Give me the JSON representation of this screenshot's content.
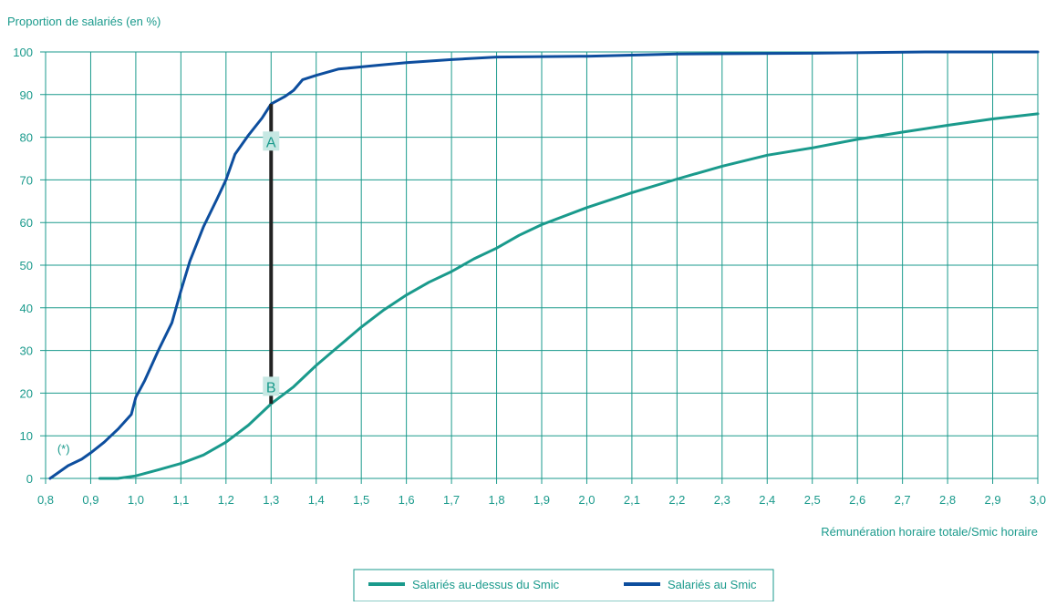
{
  "chart_data": {
    "type": "line",
    "ylabel": "Proportion de salariés (en %)",
    "xlabel": "Rémunération horaire totale/Smic horaire",
    "xlim": [
      0.8,
      3.0
    ],
    "ylim": [
      0,
      100
    ],
    "x_ticks": [
      "0,8",
      "0,9",
      "1,0",
      "1,1",
      "1,2",
      "1,3",
      "1,4",
      "1,5",
      "1,6",
      "1,7",
      "1,8",
      "1,9",
      "2,0",
      "2,1",
      "2,2",
      "2,3",
      "2,4",
      "2,5",
      "2,6",
      "2,7",
      "2,8",
      "2,9",
      "3,0"
    ],
    "y_ticks": [
      "0",
      "10",
      "20",
      "30",
      "40",
      "50",
      "60",
      "70",
      "80",
      "90",
      "100"
    ],
    "grid": true,
    "legend_position": "bottom-center",
    "series": [
      {
        "name": "Salariés au-dessus du Smic",
        "color": "#1a9a8c",
        "points": [
          [
            0.92,
            0
          ],
          [
            0.96,
            0
          ],
          [
            1.0,
            0.6
          ],
          [
            1.05,
            2.0
          ],
          [
            1.1,
            3.5
          ],
          [
            1.15,
            5.5
          ],
          [
            1.2,
            8.5
          ],
          [
            1.25,
            12.5
          ],
          [
            1.3,
            17.5
          ],
          [
            1.35,
            21.5
          ],
          [
            1.4,
            26.5
          ],
          [
            1.45,
            31
          ],
          [
            1.5,
            35.5
          ],
          [
            1.55,
            39.5
          ],
          [
            1.6,
            43
          ],
          [
            1.65,
            46
          ],
          [
            1.7,
            48.5
          ],
          [
            1.75,
            51.5
          ],
          [
            1.8,
            54
          ],
          [
            1.85,
            57
          ],
          [
            1.9,
            59.5
          ],
          [
            2.0,
            63.5
          ],
          [
            2.1,
            67
          ],
          [
            2.2,
            70.2
          ],
          [
            2.3,
            73.2
          ],
          [
            2.4,
            75.8
          ],
          [
            2.5,
            77.5
          ],
          [
            2.6,
            79.5
          ],
          [
            2.7,
            81.2
          ],
          [
            2.8,
            82.8
          ],
          [
            2.9,
            84.3
          ],
          [
            3.0,
            85.5
          ]
        ]
      },
      {
        "name": "Salariés au Smic",
        "color": "#0d4e9e",
        "points": [
          [
            0.81,
            0
          ],
          [
            0.83,
            1.5
          ],
          [
            0.85,
            3
          ],
          [
            0.88,
            4.5
          ],
          [
            0.9,
            6
          ],
          [
            0.93,
            8.5
          ],
          [
            0.96,
            11.5
          ],
          [
            0.99,
            15
          ],
          [
            1.0,
            19
          ],
          [
            1.02,
            23
          ],
          [
            1.05,
            30
          ],
          [
            1.08,
            36.5
          ],
          [
            1.1,
            44
          ],
          [
            1.12,
            51
          ],
          [
            1.15,
            59
          ],
          [
            1.18,
            65.5
          ],
          [
            1.2,
            70
          ],
          [
            1.22,
            76
          ],
          [
            1.25,
            80.5
          ],
          [
            1.28,
            84.5
          ],
          [
            1.3,
            87.8
          ],
          [
            1.33,
            89.5
          ],
          [
            1.35,
            91
          ],
          [
            1.37,
            93.5
          ],
          [
            1.4,
            94.5
          ],
          [
            1.45,
            96
          ],
          [
            1.5,
            96.5
          ],
          [
            1.55,
            97
          ],
          [
            1.6,
            97.5
          ],
          [
            1.7,
            98.2
          ],
          [
            1.8,
            98.8
          ],
          [
            2.0,
            99
          ],
          [
            2.2,
            99.5
          ],
          [
            2.5,
            99.7
          ],
          [
            2.75,
            100
          ],
          [
            3.0,
            100
          ]
        ]
      }
    ],
    "annotations": {
      "star_note": "(*)",
      "star_point": [
        0.86,
        7
      ],
      "vertical_segment": {
        "x": 1.3,
        "y_from": 17.5,
        "y_to": 87.8
      },
      "label_a": "A",
      "label_a_point": [
        1.3,
        79
      ],
      "label_b": "B",
      "label_b_point": [
        1.3,
        21.5
      ]
    }
  }
}
